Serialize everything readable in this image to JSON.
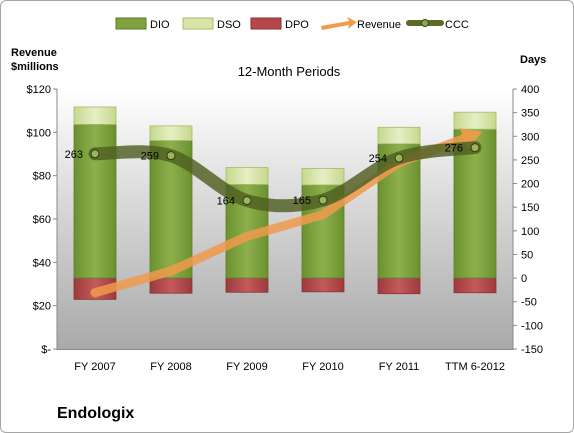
{
  "chart_data": {
    "type": "bar",
    "company": "Endologix",
    "subtitle": "12-Month Periods",
    "left_axis_title_line1": "Revenue",
    "left_axis_title_line2": "$millions",
    "right_axis_title": "Days",
    "categories": [
      "FY 2007",
      "FY 2008",
      "FY 2009",
      "FY 2010",
      "FY 2011",
      "TTM 6-2012"
    ],
    "left_ticks": [
      "$-",
      "$20",
      "$40",
      "$60",
      "$80",
      "$100",
      "$120"
    ],
    "left_ylim": [
      0,
      120
    ],
    "right_ticks": [
      "-150",
      "-100",
      "-50",
      "0",
      "50",
      "100",
      "150",
      "200",
      "250",
      "300",
      "350",
      "400"
    ],
    "right_ylim": [
      -150,
      400
    ],
    "legend_position": "top",
    "grid": false,
    "series": [
      {
        "name": "DIO",
        "axis": "right",
        "kind": "bar",
        "color": "#7fa33f",
        "values": [
          325,
          291,
          198,
          197,
          284,
          315
        ]
      },
      {
        "name": "DSO",
        "axis": "right",
        "kind": "bar-stacked",
        "color": "#d7e4a8",
        "values": [
          37,
          31,
          36,
          35,
          35,
          36
        ]
      },
      {
        "name": "DPO",
        "axis": "right",
        "kind": "bar-negative",
        "color": "#b5474a",
        "values": [
          -45,
          -32,
          -30,
          -29,
          -33,
          -31
        ]
      },
      {
        "name": "Revenue",
        "axis": "left",
        "kind": "line",
        "color": "#f09a4b",
        "values": [
          26,
          36,
          52,
          62,
          86,
          99
        ]
      },
      {
        "name": "CCC",
        "axis": "right",
        "kind": "line",
        "color": "#5a6b2a",
        "values": [
          263,
          259,
          164,
          165,
          254,
          276
        ]
      }
    ],
    "ccc_labels": [
      "263",
      "259",
      "164",
      "165",
      "254",
      "276"
    ]
  }
}
